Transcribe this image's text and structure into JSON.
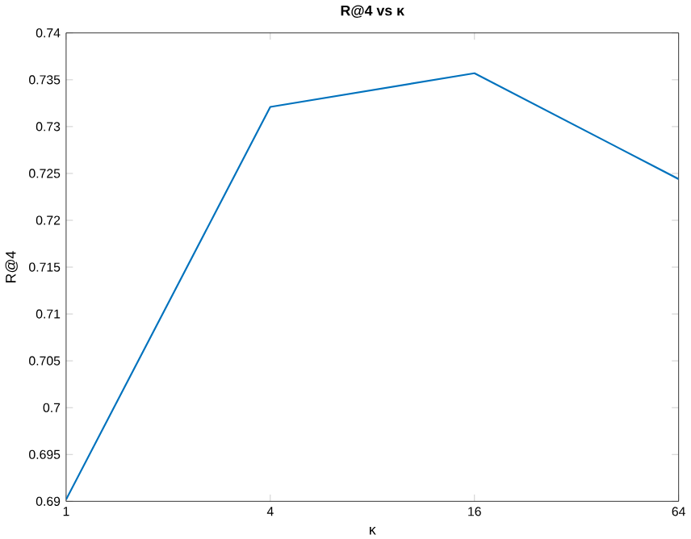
{
  "chart_data": {
    "type": "line",
    "title": "R@4 vs κ",
    "xlabel": "κ",
    "ylabel": "R@4",
    "x": [
      1,
      4,
      16,
      64
    ],
    "series": [
      {
        "color": "#0072bd",
        "values": [
          0.6902,
          0.7321,
          0.7357,
          0.7244
        ]
      }
    ],
    "log": "x",
    "xlim": [
      1,
      64
    ],
    "xticks": [
      1,
      4,
      16,
      64
    ],
    "ylim": [
      0.69,
      0.74
    ],
    "yticks": [
      0.69,
      0.695,
      0.7,
      0.705,
      0.71,
      0.715,
      0.72,
      0.725,
      0.73,
      0.735,
      0.74
    ],
    "marker": "none",
    "line_style": "solid"
  }
}
